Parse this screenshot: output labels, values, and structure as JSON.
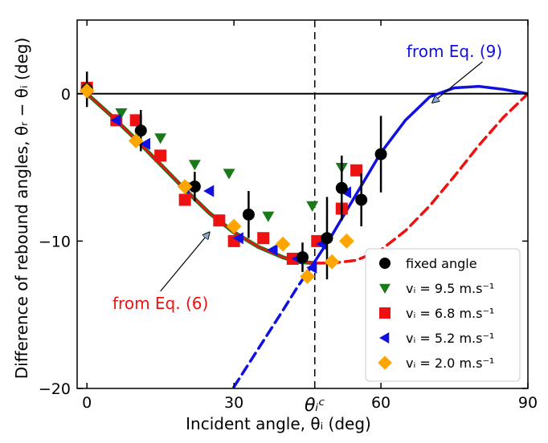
{
  "chart_data": {
    "type": "scatter",
    "xlabel": "Incident angle, θᵢ (deg)",
    "ylabel": "Difference of rebound angles, θᵣ − θᵢ (deg)",
    "xlim": [
      -2,
      90
    ],
    "ylim": [
      -20,
      5
    ],
    "x_ticks": [
      0,
      30,
      60,
      90
    ],
    "y_ticks": [
      0,
      -10,
      -20
    ],
    "critical_angle": {
      "x": 46.5,
      "label": "θᵢᶜ"
    },
    "reference_line_y": 0,
    "grid": false,
    "legend_position": "lower-right",
    "legend": [
      {
        "key": "fixed",
        "label": "fixed angle",
        "marker": "circle",
        "color": "#000000"
      },
      {
        "key": "v95",
        "label": "vᵢ = 9.5 m.s⁻¹",
        "marker": "triangle-down",
        "color": "#1a7a1a"
      },
      {
        "key": "v68",
        "label": "vᵢ = 6.8 m.s⁻¹",
        "marker": "square",
        "color": "#ee1111"
      },
      {
        "key": "v52",
        "label": "vᵢ = 5.2 m.s⁻¹",
        "marker": "triangle-left",
        "color": "#1010e0"
      },
      {
        "key": "v20",
        "label": "vᵢ = 2.0 m.s⁻¹",
        "marker": "diamond",
        "color": "#ffa500"
      }
    ],
    "series": [
      {
        "key": "fixed",
        "points": [
          [
            0,
            0.3,
            1.2
          ],
          [
            11,
            -2.5,
            1.4
          ],
          [
            22,
            -6.3,
            1.0
          ],
          [
            33,
            -8.2,
            1.6
          ],
          [
            44,
            -11.1,
            1.0
          ],
          [
            49,
            -9.8,
            2.8
          ],
          [
            52,
            -6.4,
            2.2
          ],
          [
            56,
            -7.2,
            1.8
          ],
          [
            60,
            -4.1,
            2.6
          ]
        ]
      },
      {
        "key": "v95",
        "points": [
          [
            0,
            0.2
          ],
          [
            7,
            -1.3
          ],
          [
            15,
            -3.0
          ],
          [
            22,
            -4.8
          ],
          [
            29,
            -5.4
          ],
          [
            37,
            -8.3
          ],
          [
            46,
            -7.6
          ],
          [
            52,
            -5.0
          ]
        ]
      },
      {
        "key": "v68",
        "points": [
          [
            0,
            0.4
          ],
          [
            6,
            -1.8
          ],
          [
            10,
            -1.8
          ],
          [
            15,
            -4.2
          ],
          [
            20,
            -7.2
          ],
          [
            27,
            -8.6
          ],
          [
            30,
            -10.0
          ],
          [
            36,
            -9.8
          ],
          [
            42,
            -11.2
          ],
          [
            47,
            -10.0
          ],
          [
            52,
            -7.8
          ],
          [
            55,
            -5.2
          ]
        ]
      },
      {
        "key": "v52",
        "points": [
          [
            6,
            -1.8
          ],
          [
            12,
            -3.4
          ],
          [
            20,
            -6.4
          ],
          [
            25,
            -6.6
          ],
          [
            31,
            -9.8
          ],
          [
            38,
            -10.6
          ],
          [
            43,
            -11.2
          ],
          [
            46,
            -11.8
          ],
          [
            48,
            -10.2
          ],
          [
            53,
            -6.7
          ]
        ]
      },
      {
        "key": "v20",
        "points": [
          [
            0,
            0.2
          ],
          [
            10,
            -3.2
          ],
          [
            20,
            -6.3
          ],
          [
            30,
            -9.0
          ],
          [
            40,
            -10.2
          ],
          [
            45,
            -12.4
          ],
          [
            50,
            -11.4
          ],
          [
            53,
            -10.0
          ]
        ]
      }
    ],
    "curves": [
      {
        "key": "eq6",
        "color": "#ee1111",
        "underlay": "#1a7a1a",
        "style": "solid",
        "points": [
          [
            0,
            0
          ],
          [
            5,
            -1.5
          ],
          [
            10,
            -3.1
          ],
          [
            15,
            -4.8
          ],
          [
            20,
            -6.5
          ],
          [
            25,
            -8.1
          ],
          [
            30,
            -9.4
          ],
          [
            35,
            -10.4
          ],
          [
            40,
            -11.1
          ],
          [
            43,
            -11.4
          ],
          [
            46.5,
            -11.5
          ]
        ]
      },
      {
        "key": "eq6_ext",
        "color": "#ee1111",
        "style": "dashed",
        "points": [
          [
            46.5,
            -11.5
          ],
          [
            50,
            -11.5
          ],
          [
            55,
            -11.3
          ],
          [
            60,
            -10.6
          ],
          [
            65,
            -9.3
          ],
          [
            70,
            -7.6
          ],
          [
            75,
            -5.6
          ],
          [
            80,
            -3.5
          ],
          [
            85,
            -1.6
          ],
          [
            90,
            0
          ]
        ]
      },
      {
        "key": "eq9_ext",
        "color": "#1010e0",
        "style": "dashed",
        "points": [
          [
            30,
            -19.9
          ],
          [
            35,
            -17.3
          ],
          [
            40,
            -14.7
          ],
          [
            43,
            -13.1
          ],
          [
            46.5,
            -11.4
          ]
        ]
      },
      {
        "key": "eq9",
        "color": "#1010e0",
        "style": "solid",
        "points": [
          [
            46.5,
            -11.4
          ],
          [
            50,
            -9.6
          ],
          [
            55,
            -6.8
          ],
          [
            60,
            -4.0
          ],
          [
            65,
            -1.8
          ],
          [
            70,
            -0.2
          ],
          [
            75,
            0.4
          ],
          [
            80,
            0.5
          ],
          [
            85,
            0.3
          ],
          [
            90,
            0
          ]
        ]
      }
    ],
    "annotations": [
      {
        "name": "from-eq9-label",
        "text": "from Eq. (9)",
        "color": "#1010e0",
        "x": 75,
        "y": 2.5,
        "arrow_to": [
          70.5,
          -0.6
        ]
      },
      {
        "name": "from-eq6-label",
        "text": "from Eq. (6)",
        "color": "#ee1111",
        "x": 15,
        "y": -14.6,
        "arrow_to": [
          25,
          -9.4
        ]
      }
    ]
  }
}
